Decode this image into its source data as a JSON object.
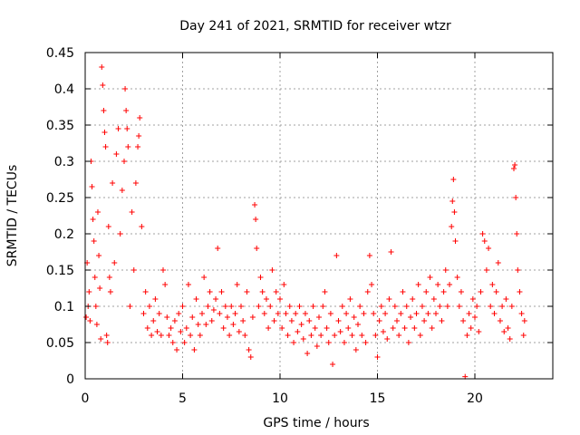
{
  "chart_data": {
    "type": "scatter",
    "title": "Day 241 of 2021, SRMTID for receiver wtzr",
    "xlabel": "GPS time / hours",
    "ylabel": "SRMTID / TECUs",
    "xlim": [
      0,
      24
    ],
    "ylim": [
      0,
      0.45
    ],
    "xticks": [
      "0",
      "5",
      "10",
      "15",
      "20"
    ],
    "xtick_values": [
      0,
      5,
      10,
      15,
      20
    ],
    "yticks": [
      "0",
      "0.05",
      "0.1",
      "0.15",
      "0.2",
      "0.25",
      "0.3",
      "0.35",
      "0.4",
      "0.45"
    ],
    "ytick_values": [
      0,
      0.05,
      0.1,
      0.15,
      0.2,
      0.25,
      0.3,
      0.35,
      0.4,
      0.45
    ],
    "grid": true,
    "marker": "+",
    "color": "#ff0000",
    "series": [
      {
        "name": "SRMTID",
        "points": [
          [
            0.05,
            0.085
          ],
          [
            0.1,
            0.16
          ],
          [
            0.15,
            0.1
          ],
          [
            0.2,
            0.12
          ],
          [
            0.25,
            0.08
          ],
          [
            0.3,
            0.3
          ],
          [
            0.35,
            0.265
          ],
          [
            0.4,
            0.22
          ],
          [
            0.45,
            0.19
          ],
          [
            0.5,
            0.14
          ],
          [
            0.55,
            0.1
          ],
          [
            0.6,
            0.075
          ],
          [
            0.65,
            0.23
          ],
          [
            0.7,
            0.17
          ],
          [
            0.75,
            0.125
          ],
          [
            0.8,
            0.055
          ],
          [
            0.85,
            0.43
          ],
          [
            0.9,
            0.405
          ],
          [
            0.95,
            0.37
          ],
          [
            1.0,
            0.34
          ],
          [
            1.05,
            0.32
          ],
          [
            1.1,
            0.06
          ],
          [
            1.15,
            0.05
          ],
          [
            1.2,
            0.21
          ],
          [
            1.25,
            0.14
          ],
          [
            1.3,
            0.12
          ],
          [
            1.4,
            0.27
          ],
          [
            1.5,
            0.16
          ],
          [
            1.6,
            0.31
          ],
          [
            1.7,
            0.345
          ],
          [
            1.8,
            0.2
          ],
          [
            1.9,
            0.26
          ],
          [
            2.0,
            0.3
          ],
          [
            2.05,
            0.4
          ],
          [
            2.1,
            0.37
          ],
          [
            2.15,
            0.345
          ],
          [
            2.2,
            0.32
          ],
          [
            2.3,
            0.1
          ],
          [
            2.4,
            0.23
          ],
          [
            2.5,
            0.15
          ],
          [
            2.6,
            0.27
          ],
          [
            2.7,
            0.32
          ],
          [
            2.75,
            0.335
          ],
          [
            2.8,
            0.36
          ],
          [
            2.9,
            0.21
          ],
          [
            3.0,
            0.09
          ],
          [
            3.1,
            0.12
          ],
          [
            3.2,
            0.07
          ],
          [
            3.3,
            0.1
          ],
          [
            3.4,
            0.06
          ],
          [
            3.5,
            0.08
          ],
          [
            3.6,
            0.11
          ],
          [
            3.7,
            0.065
          ],
          [
            3.8,
            0.09
          ],
          [
            3.9,
            0.06
          ],
          [
            4.0,
            0.15
          ],
          [
            4.1,
            0.13
          ],
          [
            4.2,
            0.085
          ],
          [
            4.3,
            0.06
          ],
          [
            4.4,
            0.07
          ],
          [
            4.5,
            0.05
          ],
          [
            4.6,
            0.08
          ],
          [
            4.7,
            0.04
          ],
          [
            4.8,
            0.09
          ],
          [
            4.9,
            0.065
          ],
          [
            5.0,
            0.1
          ],
          [
            5.1,
            0.05
          ],
          [
            5.2,
            0.07
          ],
          [
            5.3,
            0.13
          ],
          [
            5.4,
            0.06
          ],
          [
            5.5,
            0.085
          ],
          [
            5.6,
            0.04
          ],
          [
            5.7,
            0.11
          ],
          [
            5.8,
            0.075
          ],
          [
            5.9,
            0.06
          ],
          [
            6.0,
            0.09
          ],
          [
            6.1,
            0.14
          ],
          [
            6.2,
            0.075
          ],
          [
            6.3,
            0.1
          ],
          [
            6.4,
            0.12
          ],
          [
            6.5,
            0.08
          ],
          [
            6.6,
            0.095
          ],
          [
            6.7,
            0.11
          ],
          [
            6.8,
            0.18
          ],
          [
            6.9,
            0.09
          ],
          [
            7.0,
            0.12
          ],
          [
            7.1,
            0.07
          ],
          [
            7.2,
            0.1
          ],
          [
            7.3,
            0.085
          ],
          [
            7.4,
            0.06
          ],
          [
            7.5,
            0.1
          ],
          [
            7.6,
            0.075
          ],
          [
            7.7,
            0.09
          ],
          [
            7.8,
            0.13
          ],
          [
            7.9,
            0.065
          ],
          [
            8.0,
            0.1
          ],
          [
            8.1,
            0.08
          ],
          [
            8.2,
            0.06
          ],
          [
            8.3,
            0.12
          ],
          [
            8.4,
            0.04
          ],
          [
            8.5,
            0.03
          ],
          [
            8.6,
            0.085
          ],
          [
            8.7,
            0.24
          ],
          [
            8.75,
            0.22
          ],
          [
            8.8,
            0.18
          ],
          [
            8.9,
            0.1
          ],
          [
            9.0,
            0.14
          ],
          [
            9.1,
            0.12
          ],
          [
            9.2,
            0.09
          ],
          [
            9.3,
            0.11
          ],
          [
            9.4,
            0.07
          ],
          [
            9.5,
            0.1
          ],
          [
            9.6,
            0.15
          ],
          [
            9.7,
            0.08
          ],
          [
            9.8,
            0.12
          ],
          [
            9.9,
            0.09
          ],
          [
            10.0,
            0.11
          ],
          [
            10.1,
            0.07
          ],
          [
            10.2,
            0.13
          ],
          [
            10.3,
            0.09
          ],
          [
            10.4,
            0.06
          ],
          [
            10.5,
            0.1
          ],
          [
            10.6,
            0.08
          ],
          [
            10.7,
            0.05
          ],
          [
            10.8,
            0.09
          ],
          [
            10.9,
            0.065
          ],
          [
            11.0,
            0.1
          ],
          [
            11.1,
            0.075
          ],
          [
            11.2,
            0.055
          ],
          [
            11.3,
            0.09
          ],
          [
            11.4,
            0.035
          ],
          [
            11.5,
            0.08
          ],
          [
            11.6,
            0.06
          ],
          [
            11.7,
            0.1
          ],
          [
            11.8,
            0.07
          ],
          [
            11.9,
            0.045
          ],
          [
            12.0,
            0.085
          ],
          [
            12.1,
            0.06
          ],
          [
            12.2,
            0.1
          ],
          [
            12.3,
            0.12
          ],
          [
            12.4,
            0.07
          ],
          [
            12.5,
            0.05
          ],
          [
            12.6,
            0.09
          ],
          [
            12.7,
            0.02
          ],
          [
            12.8,
            0.06
          ],
          [
            12.9,
            0.17
          ],
          [
            13.0,
            0.08
          ],
          [
            13.1,
            0.065
          ],
          [
            13.2,
            0.1
          ],
          [
            13.3,
            0.05
          ],
          [
            13.4,
            0.09
          ],
          [
            13.5,
            0.07
          ],
          [
            13.6,
            0.11
          ],
          [
            13.7,
            0.06
          ],
          [
            13.8,
            0.085
          ],
          [
            13.9,
            0.04
          ],
          [
            14.0,
            0.075
          ],
          [
            14.1,
            0.1
          ],
          [
            14.2,
            0.06
          ],
          [
            14.3,
            0.09
          ],
          [
            14.4,
            0.05
          ],
          [
            14.5,
            0.12
          ],
          [
            14.6,
            0.17
          ],
          [
            14.7,
            0.13
          ],
          [
            14.8,
            0.09
          ],
          [
            14.9,
            0.06
          ],
          [
            15.0,
            0.03
          ],
          [
            15.1,
            0.08
          ],
          [
            15.2,
            0.1
          ],
          [
            15.3,
            0.065
          ],
          [
            15.4,
            0.09
          ],
          [
            15.5,
            0.055
          ],
          [
            15.6,
            0.11
          ],
          [
            15.7,
            0.175
          ],
          [
            15.8,
            0.07
          ],
          [
            15.9,
            0.1
          ],
          [
            16.0,
            0.08
          ],
          [
            16.1,
            0.06
          ],
          [
            16.2,
            0.09
          ],
          [
            16.3,
            0.12
          ],
          [
            16.4,
            0.07
          ],
          [
            16.5,
            0.1
          ],
          [
            16.6,
            0.05
          ],
          [
            16.7,
            0.085
          ],
          [
            16.8,
            0.11
          ],
          [
            16.9,
            0.07
          ],
          [
            17.0,
            0.09
          ],
          [
            17.1,
            0.13
          ],
          [
            17.2,
            0.06
          ],
          [
            17.3,
            0.1
          ],
          [
            17.4,
            0.08
          ],
          [
            17.5,
            0.12
          ],
          [
            17.6,
            0.09
          ],
          [
            17.7,
            0.14
          ],
          [
            17.8,
            0.07
          ],
          [
            17.9,
            0.11
          ],
          [
            18.0,
            0.09
          ],
          [
            18.1,
            0.13
          ],
          [
            18.2,
            0.1
          ],
          [
            18.3,
            0.08
          ],
          [
            18.4,
            0.12
          ],
          [
            18.5,
            0.15
          ],
          [
            18.6,
            0.1
          ],
          [
            18.7,
            0.13
          ],
          [
            18.8,
            0.21
          ],
          [
            18.85,
            0.245
          ],
          [
            18.9,
            0.275
          ],
          [
            18.95,
            0.23
          ],
          [
            19.0,
            0.19
          ],
          [
            19.1,
            0.14
          ],
          [
            19.2,
            0.1
          ],
          [
            19.3,
            0.12
          ],
          [
            19.4,
            0.08
          ],
          [
            19.5,
            0.003
          ],
          [
            19.6,
            0.06
          ],
          [
            19.7,
            0.09
          ],
          [
            19.8,
            0.07
          ],
          [
            19.9,
            0.11
          ],
          [
            20.0,
            0.085
          ],
          [
            20.1,
            0.1
          ],
          [
            20.2,
            0.065
          ],
          [
            20.3,
            0.12
          ],
          [
            20.4,
            0.2
          ],
          [
            20.5,
            0.19
          ],
          [
            20.6,
            0.15
          ],
          [
            20.7,
            0.18
          ],
          [
            20.8,
            0.1
          ],
          [
            20.9,
            0.13
          ],
          [
            21.0,
            0.09
          ],
          [
            21.1,
            0.12
          ],
          [
            21.2,
            0.16
          ],
          [
            21.3,
            0.08
          ],
          [
            21.4,
            0.1
          ],
          [
            21.5,
            0.065
          ],
          [
            21.6,
            0.11
          ],
          [
            21.7,
            0.07
          ],
          [
            21.8,
            0.055
          ],
          [
            21.9,
            0.1
          ],
          [
            22.0,
            0.29
          ],
          [
            22.05,
            0.295
          ],
          [
            22.1,
            0.25
          ],
          [
            22.15,
            0.2
          ],
          [
            22.2,
            0.15
          ],
          [
            22.3,
            0.12
          ],
          [
            22.4,
            0.09
          ],
          [
            22.5,
            0.06
          ],
          [
            22.55,
            0.08
          ]
        ]
      }
    ]
  }
}
